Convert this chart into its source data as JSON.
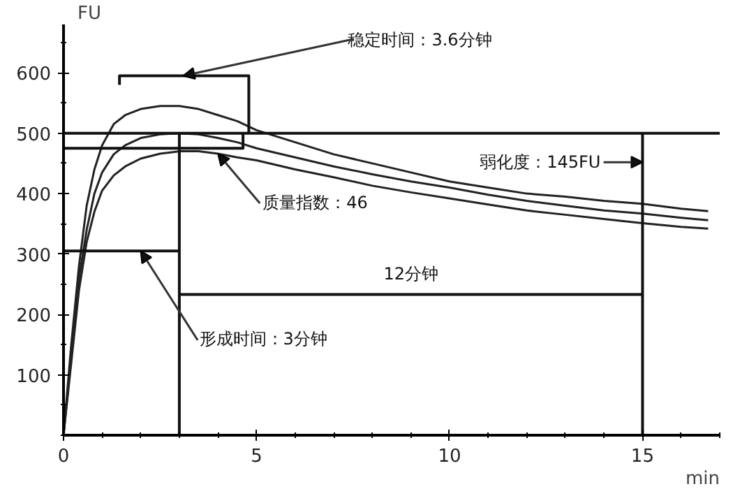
{
  "chart_data": {
    "type": "line",
    "xlabel": "min",
    "ylabel": "FU",
    "xlim": [
      0,
      17
    ],
    "ylim": [
      0,
      680
    ],
    "xticks": [
      0,
      5,
      10,
      15
    ],
    "yticks": [
      100,
      200,
      300,
      400,
      500,
      600
    ],
    "grid": false,
    "marker": "none",
    "line_style": "solid",
    "x": [
      0,
      0.2,
      0.4,
      0.6,
      0.8,
      1.0,
      1.3,
      1.6,
      2.0,
      2.5,
      3.0,
      3.5,
      4.0,
      4.5,
      5,
      6,
      7,
      8,
      9,
      10,
      11,
      12,
      13,
      14,
      15,
      16,
      16.7
    ],
    "series": [
      {
        "color": "#222222",
        "values": [
          0,
          150,
          280,
          380,
          440,
          480,
          515,
          530,
          540,
          545,
          545,
          540,
          530,
          520,
          505,
          485,
          465,
          450,
          435,
          420,
          410,
          400,
          395,
          388,
          383,
          375,
          371
        ]
      },
      {
        "color": "#222222",
        "values": [
          0,
          130,
          260,
          340,
          400,
          435,
          465,
          480,
          492,
          498,
          500,
          498,
          492,
          485,
          475,
          460,
          445,
          432,
          420,
          410,
          398,
          388,
          380,
          372,
          367,
          360,
          356
        ]
      },
      {
        "color": "#222222",
        "values": [
          0,
          120,
          240,
          320,
          370,
          405,
          430,
          445,
          458,
          466,
          470,
          470,
          466,
          460,
          455,
          440,
          427,
          413,
          402,
          392,
          382,
          372,
          365,
          358,
          351,
          345,
          342
        ]
      },
      {
        "color": "#111111",
        "x": [
          0,
          3
        ],
        "values": [
          305,
          305
        ]
      },
      {
        "color": "#111111",
        "x": [
          3,
          3
        ],
        "values": [
          0,
          500
        ]
      },
      {
        "color": "#111111",
        "x": [
          15,
          15
        ],
        "values": [
          0,
          500
        ]
      },
      {
        "color": "#111111",
        "x": [
          0,
          4.65,
          4.65
        ],
        "values": [
          475,
          475,
          500
        ]
      },
      {
        "color": "#111111",
        "x": [
          1.45,
          1.45,
          4.8,
          4.8
        ],
        "values": [
          580,
          595,
          595,
          500
        ]
      },
      {
        "color": "#111111",
        "x": [
          3,
          15
        ],
        "values": [
          233,
          233
        ]
      }
    ],
    "ref_lines": [
      {
        "axis": "y",
        "value": 500,
        "color": "#111111"
      }
    ],
    "annotations": [
      {
        "text": "稳定时间：3.6分钟",
        "x": 3.1,
        "y": 595
      },
      {
        "text": "质量指数：46",
        "x": 4.0,
        "y": 466
      },
      {
        "text": "弱化度：145FU",
        "x": 15,
        "y": 452
      },
      {
        "text": "12分钟",
        "x": 9,
        "y": 233
      },
      {
        "text": "形成时间：3分钟",
        "x": 2.0,
        "y": 305
      }
    ]
  }
}
